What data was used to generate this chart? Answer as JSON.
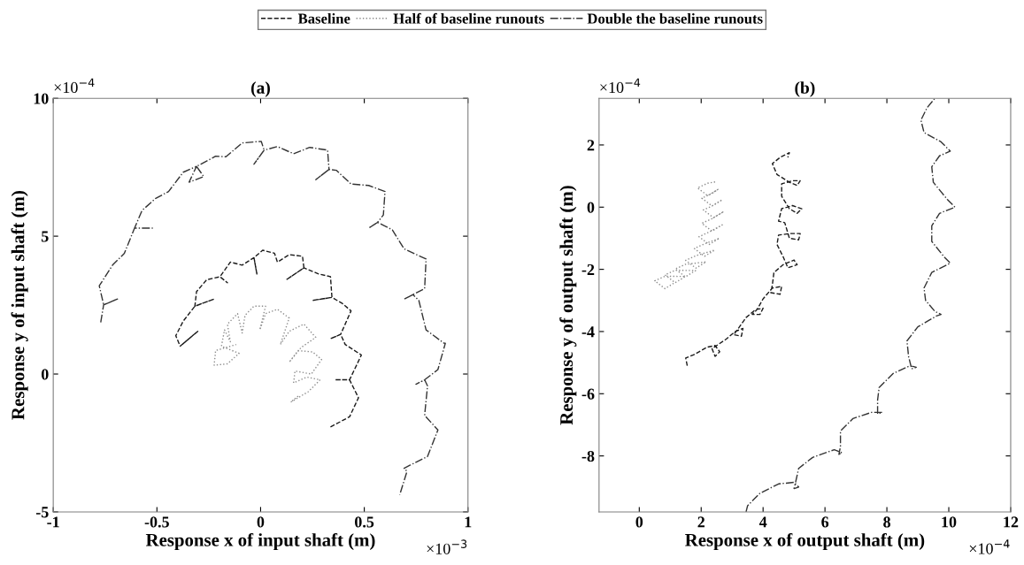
{
  "chart_data": [
    {
      "type": "line",
      "title": "(a)",
      "xlabel": "Response x of input shaft (m)",
      "ylabel": "Response y of input shaft (m)",
      "annotations": [
        "×10$^{−4}$",
        "×10$^{−3}$"
      ],
      "xlim": [
        -1,
        1
      ],
      "ylim": [
        -5,
        10
      ],
      "xticks": [
        -1,
        -0.5,
        0,
        0.5,
        1
      ],
      "yticks": [
        -5,
        0,
        5,
        10
      ],
      "legend": "top",
      "series": [
        {
          "name": "Baseline",
          "color": "#1a1a1a",
          "line_style": "dashed",
          "x": [
            0.337,
            0.429,
            0.472,
            0.429,
            0.358,
            0.429,
            0.486,
            0.408,
            0.386,
            0.337,
            0.386,
            0.436,
            0.394,
            0.344,
            0.251,
            0.344,
            0.337,
            0.28,
            0.209,
            0.124,
            0.209,
            0.202,
            0.138,
            0.081,
            0.067,
            0.01,
            -0.032,
            -0.018,
            -0.032,
            -0.089,
            -0.146,
            -0.196,
            -0.16,
            -0.196,
            -0.26,
            -0.309,
            -0.317,
            -0.224,
            -0.317,
            -0.373,
            -0.409,
            -0.388,
            -0.303,
            -0.388
          ],
          "values": [
            -1.92,
            -1.55,
            -0.86,
            -0.21,
            -0.21,
            -0.21,
            0.69,
            1.07,
            1.44,
            1.28,
            1.44,
            2.29,
            2.56,
            2.78,
            2.67,
            2.78,
            3.53,
            3.63,
            3.85,
            3.42,
            3.85,
            4.27,
            4.33,
            4.06,
            4.38,
            4.49,
            4.22,
            3.63,
            4.22,
            3.95,
            4.06,
            3.53,
            3.31,
            3.53,
            3.42,
            2.99,
            2.46,
            2.72,
            2.46,
            1.92,
            1.39,
            1.01,
            1.55,
            1.01
          ]
        },
        {
          "name": "Half of baseline runouts",
          "color": "#8c8c8c",
          "line_style": "dotted",
          "x": [
            0.181,
            0.145,
            0.23,
            0.287,
            0.223,
            0.159,
            0.166,
            0.245,
            0.294,
            0.251,
            0.181,
            0.138,
            0.195,
            0.266,
            0.209,
            0.138,
            0.095,
            0.138,
            0.081,
            0.024,
            -0.004,
            0.024,
            -0.032,
            -0.075,
            -0.089,
            -0.111,
            -0.16,
            -0.146,
            -0.174,
            -0.189,
            -0.104,
            -0.16,
            -0.224,
            -0.217,
            -0.118
          ],
          "values": [
            -0.8,
            -1.02,
            -0.64,
            -0.21,
            -0.11,
            -0.32,
            0.11,
            0.0,
            0.53,
            0.8,
            0.85,
            0.43,
            0.96,
            1.33,
            1.81,
            1.55,
            1.07,
            2.03,
            2.35,
            2.19,
            1.6,
            2.46,
            2.46,
            2.13,
            1.49,
            2.19,
            1.81,
            1.17,
            1.6,
            1.01,
            0.75,
            0.37,
            0.32,
            0.85,
            1.07
          ]
        },
        {
          "name": "Double the baseline runouts",
          "color": "#333333",
          "line_style": "dashdot",
          "x": [
            -0.771,
            -0.757,
            -0.69,
            -0.757,
            -0.778,
            -0.714,
            -0.657,
            -0.608,
            -0.522,
            -0.608,
            -0.572,
            -0.508,
            -0.444,
            -0.373,
            -0.309,
            -0.345,
            -0.274,
            -0.309,
            -0.217,
            -0.167,
            -0.089,
            0.003,
            0.017,
            -0.032,
            0.017,
            0.081,
            0.159,
            0.237,
            0.323,
            0.33,
            0.266,
            0.33,
            0.365,
            0.436,
            0.521,
            0.6,
            0.592,
            0.564,
            0.521,
            0.564,
            0.635,
            0.692,
            0.798,
            0.791,
            0.735,
            0.692,
            0.735,
            0.763,
            0.798,
            0.884,
            0.891,
            0.855,
            0.791,
            0.749,
            0.791,
            0.805,
            0.791,
            0.855,
            0.805,
            0.72,
            0.692,
            0.706,
            0.671
          ],
          "values": [
            1.87,
            2.51,
            2.72,
            2.51,
            3.2,
            3.95,
            4.38,
            5.29,
            5.29,
            5.29,
            5.93,
            6.36,
            6.62,
            7.32,
            7.53,
            6.96,
            7.16,
            7.53,
            7.9,
            7.88,
            8.38,
            8.44,
            8.12,
            7.61,
            8.12,
            8.25,
            7.99,
            8.22,
            8.12,
            7.42,
            7.05,
            7.42,
            7.39,
            6.89,
            6.84,
            6.62,
            5.77,
            5.5,
            5.29,
            5.5,
            5.23,
            4.54,
            4.17,
            3.1,
            2.88,
            2.72,
            2.88,
            2.67,
            1.6,
            1.12,
            1.12,
            0.16,
            -0.21,
            -0.37,
            -0.21,
            -0.43,
            -1.5,
            -2.03,
            -2.99,
            -3.31,
            -3.42,
            -3.53,
            -4.38
          ]
        }
      ]
    },
    {
      "type": "line",
      "title": "(b)",
      "xlabel": "Response x of output shaft (m)",
      "ylabel": "Response y of output shaft (m)",
      "annotations": [
        "×10$^{−4}$",
        "×10$^{−4}$"
      ],
      "xlim": [
        -1.3,
        12
      ],
      "ylim": [
        -9.8,
        3.5
      ],
      "xticks": [
        0,
        2,
        4,
        6,
        8,
        10,
        12
      ],
      "yticks": [
        -8,
        -6,
        -4,
        -2,
        0,
        2
      ],
      "series": [
        {
          "color": "#1a1a1a",
          "line_style": "dashed",
          "x": [
            1.55,
            1.5,
            1.75,
            2.2,
            2.45,
            2.6,
            2.45,
            2.35,
            2.8,
            3.1,
            3.35,
            3.3,
            3.05,
            3.2,
            3.45,
            3.75,
            4.0,
            3.9,
            3.65,
            3.8,
            4.0,
            4.3,
            4.6,
            4.55,
            4.25,
            4.3,
            4.35,
            4.65,
            5.0,
            5.1,
            4.8,
            4.65,
            4.45,
            4.5,
            4.85,
            5.2,
            5.15,
            4.85,
            4.7,
            4.5,
            4.6,
            4.95,
            5.25,
            5.1,
            4.85,
            4.6,
            4.6,
            4.95,
            5.2,
            5.1,
            4.85,
            4.45,
            4.3,
            4.55,
            4.85,
            4.8
          ],
          "values": [
            -5.1,
            -4.85,
            -4.75,
            -4.5,
            -4.45,
            -4.65,
            -4.8,
            -4.55,
            -4.25,
            -4.0,
            -3.9,
            -4.15,
            -4.1,
            -3.9,
            -3.55,
            -3.3,
            -3.25,
            -3.45,
            -3.45,
            -3.3,
            -2.95,
            -2.6,
            -2.55,
            -2.8,
            -2.75,
            -2.5,
            -2.1,
            -1.85,
            -1.7,
            -1.85,
            -1.95,
            -1.6,
            -1.2,
            -0.9,
            -0.85,
            -0.85,
            -1.05,
            -1.0,
            -0.5,
            -0.45,
            -0.05,
            0.05,
            -0.05,
            -0.2,
            -0.05,
            0.35,
            0.75,
            0.85,
            0.85,
            0.7,
            0.8,
            1.05,
            1.4,
            1.6,
            1.75,
            1.6
          ]
        },
        {
          "color": "#8c8c8c",
          "line_style": "dotted",
          "x": [
            2.45,
            2.21,
            1.88,
            2.21,
            2.54,
            2.35,
            2.02,
            2.35,
            2.68,
            2.4,
            2.07,
            2.4,
            2.73,
            2.35,
            2.02,
            2.35,
            2.68,
            2.26,
            1.93,
            2.26,
            2.59,
            2.11,
            1.78,
            2.11,
            2.44,
            1.83,
            1.5,
            1.83,
            2.16,
            1.49,
            1.16,
            1.49,
            1.82,
            1.16,
            0.83,
            1.16,
            1.49,
            0.83,
            0.5,
            0.83,
            1.16
          ],
          "values": [
            0.81,
            0.77,
            0.62,
            0.37,
            0.57,
            0.44,
            0.29,
            0.04,
            0.24,
            0.06,
            -0.09,
            -0.34,
            -0.14,
            -0.37,
            -0.52,
            -0.77,
            -0.57,
            -0.8,
            -0.95,
            -1.2,
            -1.0,
            -1.18,
            -1.33,
            -1.58,
            -1.38,
            -1.56,
            -1.71,
            -1.96,
            -1.76,
            -1.84,
            -1.99,
            -2.24,
            -2.04,
            -2.03,
            -2.18,
            -2.43,
            -2.23,
            -2.22,
            -2.37,
            -2.62,
            -2.42
          ]
        },
        {
          "color": "#333333",
          "line_style": "dashdot",
          "x": [
            3.45,
            3.5,
            3.9,
            4.5,
            5.0,
            5.15,
            5.0,
            5.05,
            5.15,
            5.6,
            6.3,
            6.55,
            6.45,
            6.5,
            6.5,
            6.9,
            7.5,
            7.85,
            7.7,
            7.7,
            7.75,
            8.2,
            8.75,
            8.95,
            8.8,
            8.7,
            8.65,
            9.0,
            9.6,
            9.75,
            9.55,
            9.25,
            9.2,
            9.45,
            10.05,
            9.85,
            9.45,
            9.45,
            9.7,
            10.2,
            9.95,
            9.5,
            9.45,
            9.7,
            10.05,
            9.75,
            9.2,
            9.1,
            9.3,
            9.55
          ],
          "values": [
            -9.8,
            -9.6,
            -9.2,
            -8.9,
            -8.85,
            -9.0,
            -9.05,
            -8.85,
            -8.4,
            -8.05,
            -7.8,
            -7.9,
            -7.95,
            -7.7,
            -7.2,
            -6.8,
            -6.6,
            -6.6,
            -6.65,
            -6.2,
            -5.8,
            -5.35,
            -5.1,
            -5.15,
            -5.2,
            -4.8,
            -4.3,
            -3.85,
            -3.5,
            -3.45,
            -3.35,
            -3.0,
            -2.6,
            -2.1,
            -1.8,
            -1.6,
            -1.1,
            -0.6,
            -0.2,
            0.0,
            0.25,
            0.8,
            1.3,
            1.65,
            1.8,
            2.1,
            2.4,
            2.8,
            3.2,
            3.5
          ]
        }
      ]
    }
  ]
}
